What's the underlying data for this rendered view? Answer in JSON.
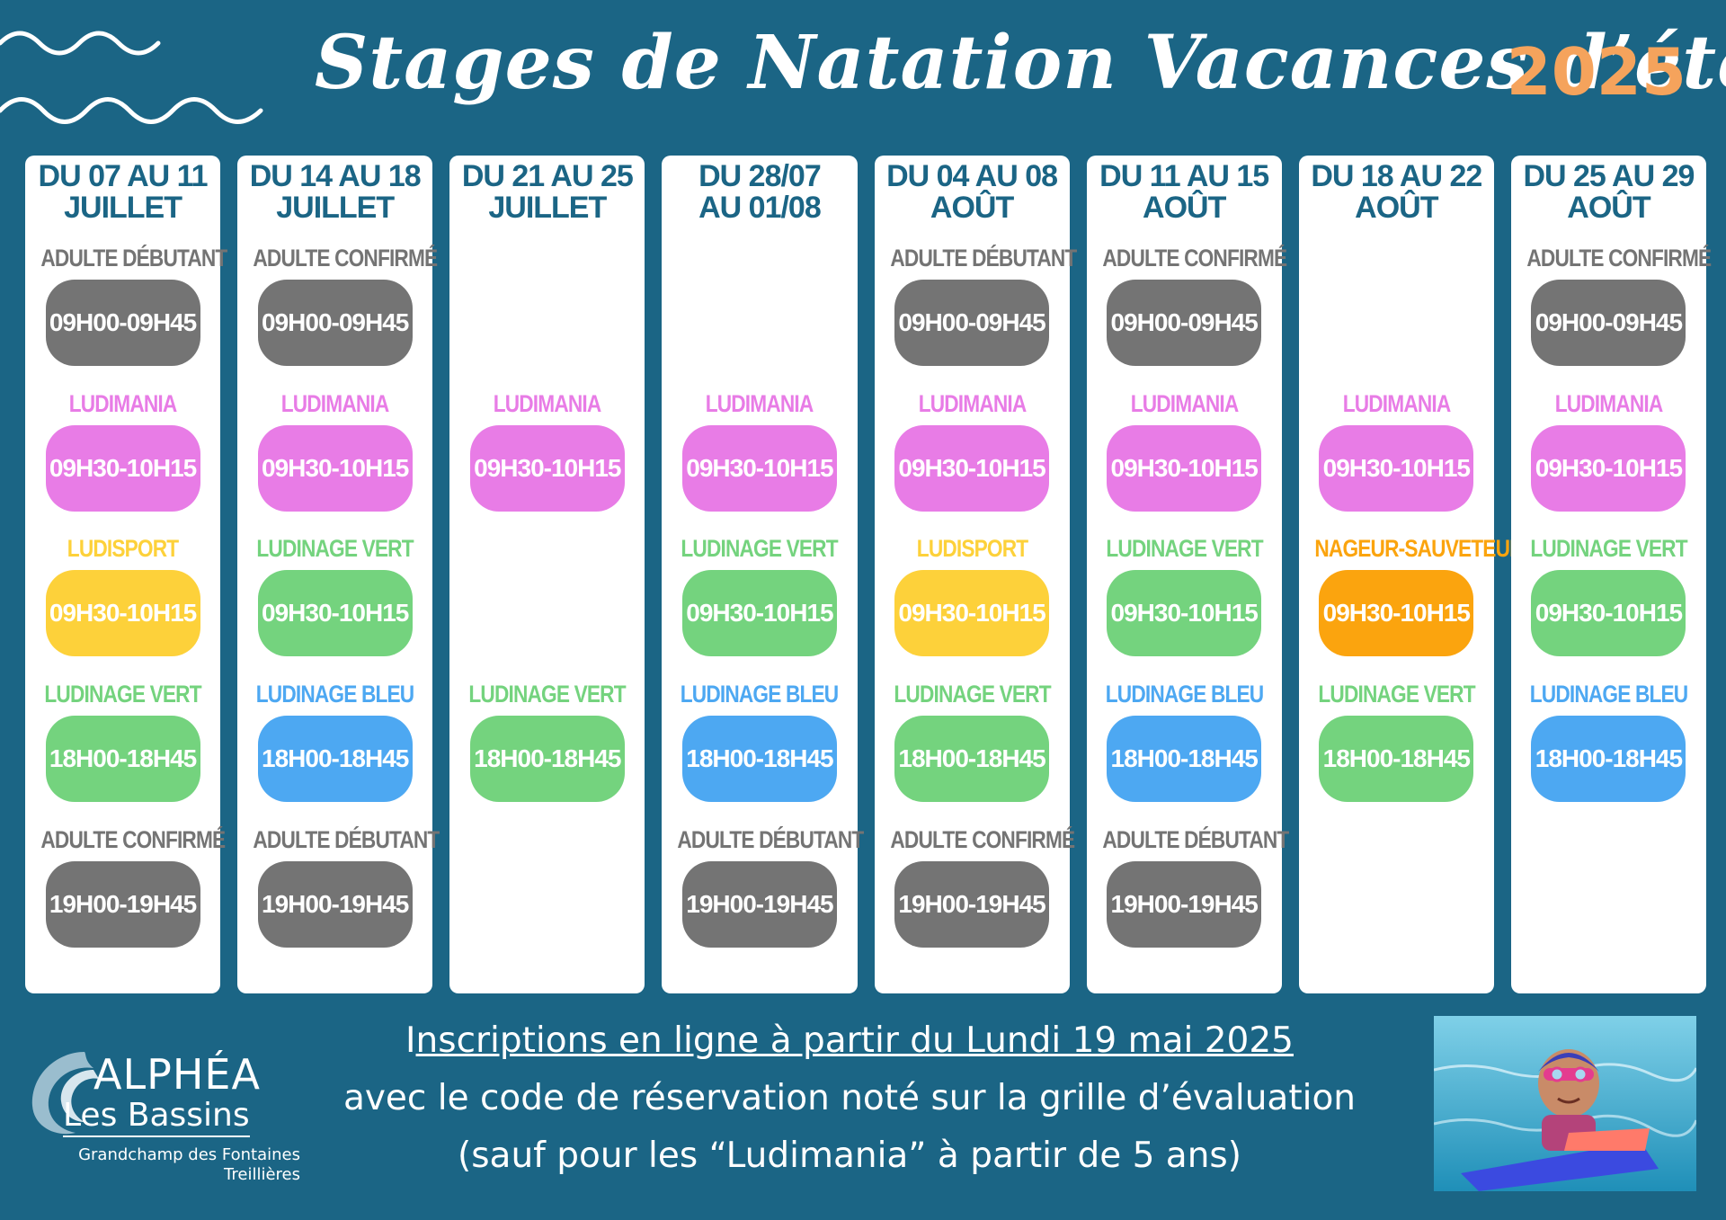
{
  "header": {
    "title": "Stages de Natation Vacances d’été",
    "year": "2025"
  },
  "colors": {
    "background": "#1b6585",
    "adulte": "#747474",
    "ludimania": "#e87ce6",
    "ludisport": "#fdd13a",
    "ludinage_vert": "#74d37e",
    "ludinage_bleu": "#4da8f2",
    "nageur_sauveteur": "#fba40e",
    "year": "#f5a35c"
  },
  "weeks": [
    {
      "line1": "DU 07 AU 11",
      "line2": "JUILLET",
      "slots": [
        {
          "label": "ADULTE DÉBUTANT",
          "time": "09H00-09H45",
          "kind": "adulte"
        },
        {
          "label": "LUDIMANIA",
          "time": "09H30-10H15",
          "kind": "ludimania"
        },
        {
          "label": "LUDISPORT",
          "time": "09H30-10H15",
          "kind": "ludisport"
        },
        {
          "label": "LUDINAGE VERT",
          "time": "18H00-18H45",
          "kind": "ludinage_vert"
        },
        {
          "label": "ADULTE CONFIRMÉ",
          "time": "19H00-19H45",
          "kind": "adulte"
        }
      ]
    },
    {
      "line1": "DU 14 AU 18",
      "line2": "JUILLET",
      "slots": [
        {
          "label": "ADULTE CONFIRMÉ",
          "time": "09H00-09H45",
          "kind": "adulte"
        },
        {
          "label": "LUDIMANIA",
          "time": "09H30-10H15",
          "kind": "ludimania"
        },
        {
          "label": "LUDINAGE VERT",
          "time": "09H30-10H15",
          "kind": "ludinage_vert"
        },
        {
          "label": "LUDINAGE BLEU",
          "time": "18H00-18H45",
          "kind": "ludinage_bleu"
        },
        {
          "label": "ADULTE DÉBUTANT",
          "time": "19H00-19H45",
          "kind": "adulte"
        }
      ]
    },
    {
      "line1": "DU 21 AU 25",
      "line2": "JUILLET",
      "slots": [
        null,
        {
          "label": "LUDIMANIA",
          "time": "09H30-10H15",
          "kind": "ludimania"
        },
        null,
        {
          "label": "LUDINAGE VERT",
          "time": "18H00-18H45",
          "kind": "ludinage_vert"
        },
        null
      ]
    },
    {
      "line1": "DU 28/07",
      "line2": "AU 01/08",
      "slots": [
        null,
        {
          "label": "LUDIMANIA",
          "time": "09H30-10H15",
          "kind": "ludimania"
        },
        {
          "label": "LUDINAGE VERT",
          "time": "09H30-10H15",
          "kind": "ludinage_vert"
        },
        {
          "label": "LUDINAGE BLEU",
          "time": "18H00-18H45",
          "kind": "ludinage_bleu"
        },
        {
          "label": "ADULTE DÉBUTANT",
          "time": "19H00-19H45",
          "kind": "adulte"
        }
      ]
    },
    {
      "line1": "DU 04 AU 08",
      "line2": "AOÛT",
      "slots": [
        {
          "label": "ADULTE DÉBUTANT",
          "time": "09H00-09H45",
          "kind": "adulte"
        },
        {
          "label": "LUDIMANIA",
          "time": "09H30-10H15",
          "kind": "ludimania"
        },
        {
          "label": "LUDISPORT",
          "time": "09H30-10H15",
          "kind": "ludisport"
        },
        {
          "label": "LUDINAGE VERT",
          "time": "18H00-18H45",
          "kind": "ludinage_vert"
        },
        {
          "label": "ADULTE CONFIRMÉ",
          "time": "19H00-19H45",
          "kind": "adulte"
        }
      ]
    },
    {
      "line1": "DU 11 AU 15",
      "line2": "AOÛT",
      "slots": [
        {
          "label": "ADULTE CONFIRMÉ",
          "time": "09H00-09H45",
          "kind": "adulte"
        },
        {
          "label": "LUDIMANIA",
          "time": "09H30-10H15",
          "kind": "ludimania"
        },
        {
          "label": "LUDINAGE VERT",
          "time": "09H30-10H15",
          "kind": "ludinage_vert"
        },
        {
          "label": "LUDINAGE BLEU",
          "time": "18H00-18H45",
          "kind": "ludinage_bleu"
        },
        {
          "label": "ADULTE DÉBUTANT",
          "time": "19H00-19H45",
          "kind": "adulte"
        }
      ]
    },
    {
      "line1": "DU 18 AU 22",
      "line2": "AOÛT",
      "slots": [
        null,
        {
          "label": "LUDIMANIA",
          "time": "09H30-10H15",
          "kind": "ludimania"
        },
        {
          "label": "NAGEUR-SAUVETEUR",
          "time": "09H30-10H15",
          "kind": "nageur_sauveteur"
        },
        {
          "label": "LUDINAGE VERT",
          "time": "18H00-18H45",
          "kind": "ludinage_vert"
        },
        null
      ]
    },
    {
      "line1": "DU 25 AU 29",
      "line2": "AOÛT",
      "slots": [
        {
          "label": "ADULTE CONFIRMÉ",
          "time": "09H00-09H45",
          "kind": "adulte"
        },
        {
          "label": "LUDIMANIA",
          "time": "09H30-10H15",
          "kind": "ludimania"
        },
        {
          "label": "LUDINAGE VERT",
          "time": "09H30-10H15",
          "kind": "ludinage_vert"
        },
        {
          "label": "LUDINAGE BLEU",
          "time": "18H00-18H45",
          "kind": "ludinage_bleu"
        },
        null
      ]
    }
  ],
  "footer": {
    "line1_prefix": "I",
    "line1_underlined": "nscriptions en ligne à partir du Lundi 19 mai 2025 ",
    "line2": "avec le code de réservation noté sur la grille d’évaluation",
    "line3": "(sauf pour les “Ludimania” à partir de 5 ans)"
  },
  "logo": {
    "name": "ALPHÉA",
    "subtitle": "Les Bassins",
    "location_line1": "Grandchamp des Fontaines",
    "location_line2": "Treillières",
    "icon": "wave-splash-icon"
  },
  "photo": {
    "subject": "child-swimmer-kickboard-photo"
  }
}
